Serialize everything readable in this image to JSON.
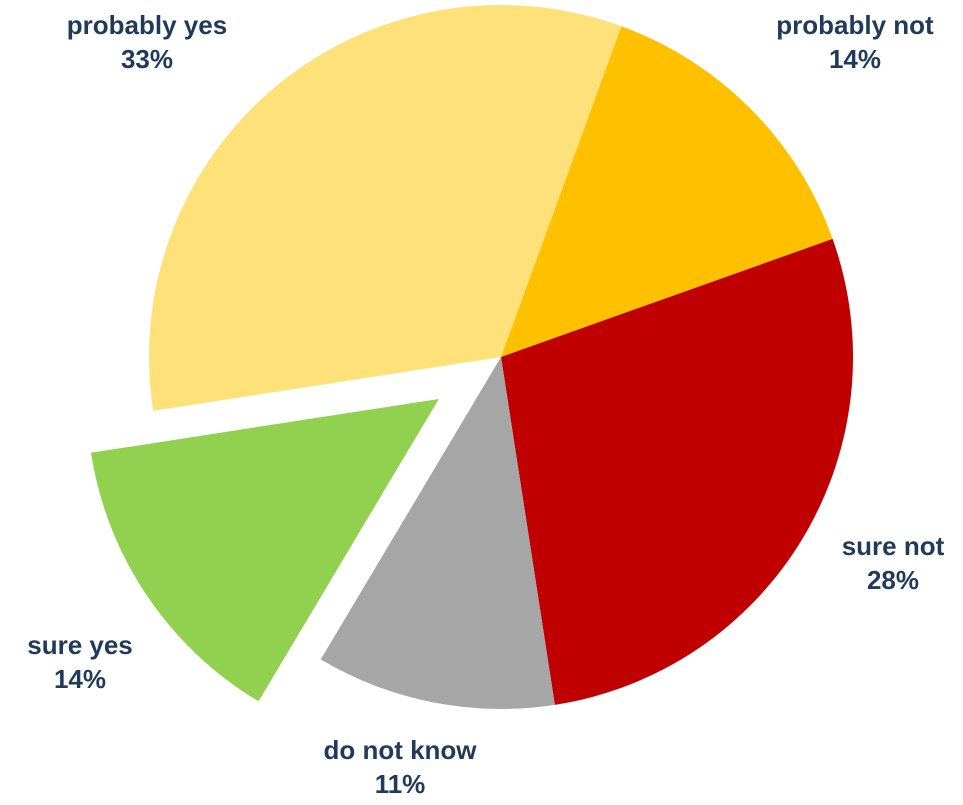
{
  "chart_data": {
    "type": "pie",
    "slices": [
      {
        "label": "probably not",
        "value": 14,
        "value_label": "14%",
        "color": "#FFC000"
      },
      {
        "label": "sure not",
        "value": 28,
        "value_label": "28%",
        "color": "#C00000"
      },
      {
        "label": "do not know",
        "value": 11,
        "value_label": "11%",
        "color": "#A6A6A6"
      },
      {
        "label": "sure yes",
        "value": 14,
        "value_label": "14%",
        "color": "#92D050",
        "exploded": true
      },
      {
        "label": "probably yes",
        "value": 33,
        "value_label": "33%",
        "color": "#FFE17A"
      }
    ],
    "label_color": "#1F3A5A"
  }
}
